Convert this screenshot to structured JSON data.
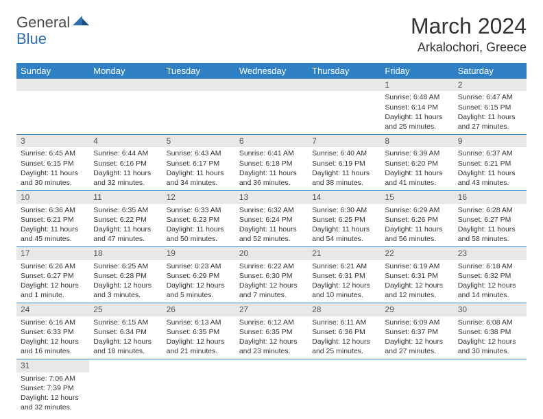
{
  "logo": {
    "general": "General",
    "blue": "Blue"
  },
  "title": "March 2024",
  "location": "Arkalochori, Greece",
  "dayHeaders": [
    "Sunday",
    "Monday",
    "Tuesday",
    "Wednesday",
    "Thursday",
    "Friday",
    "Saturday"
  ],
  "colors": {
    "header_bg": "#3080c5",
    "header_text": "#ffffff",
    "border": "#3080c5",
    "daynum_bg": "#e8e8e8",
    "logo_blue": "#2f6faf",
    "text": "#333333"
  },
  "weeks": [
    [
      null,
      null,
      null,
      null,
      null,
      {
        "n": "1",
        "sr": "Sunrise: 6:48 AM",
        "ss": "Sunset: 6:14 PM",
        "d1": "Daylight: 11 hours",
        "d2": "and 25 minutes."
      },
      {
        "n": "2",
        "sr": "Sunrise: 6:47 AM",
        "ss": "Sunset: 6:15 PM",
        "d1": "Daylight: 11 hours",
        "d2": "and 27 minutes."
      }
    ],
    [
      {
        "n": "3",
        "sr": "Sunrise: 6:45 AM",
        "ss": "Sunset: 6:15 PM",
        "d1": "Daylight: 11 hours",
        "d2": "and 30 minutes."
      },
      {
        "n": "4",
        "sr": "Sunrise: 6:44 AM",
        "ss": "Sunset: 6:16 PM",
        "d1": "Daylight: 11 hours",
        "d2": "and 32 minutes."
      },
      {
        "n": "5",
        "sr": "Sunrise: 6:43 AM",
        "ss": "Sunset: 6:17 PM",
        "d1": "Daylight: 11 hours",
        "d2": "and 34 minutes."
      },
      {
        "n": "6",
        "sr": "Sunrise: 6:41 AM",
        "ss": "Sunset: 6:18 PM",
        "d1": "Daylight: 11 hours",
        "d2": "and 36 minutes."
      },
      {
        "n": "7",
        "sr": "Sunrise: 6:40 AM",
        "ss": "Sunset: 6:19 PM",
        "d1": "Daylight: 11 hours",
        "d2": "and 38 minutes."
      },
      {
        "n": "8",
        "sr": "Sunrise: 6:39 AM",
        "ss": "Sunset: 6:20 PM",
        "d1": "Daylight: 11 hours",
        "d2": "and 41 minutes."
      },
      {
        "n": "9",
        "sr": "Sunrise: 6:37 AM",
        "ss": "Sunset: 6:21 PM",
        "d1": "Daylight: 11 hours",
        "d2": "and 43 minutes."
      }
    ],
    [
      {
        "n": "10",
        "sr": "Sunrise: 6:36 AM",
        "ss": "Sunset: 6:21 PM",
        "d1": "Daylight: 11 hours",
        "d2": "and 45 minutes."
      },
      {
        "n": "11",
        "sr": "Sunrise: 6:35 AM",
        "ss": "Sunset: 6:22 PM",
        "d1": "Daylight: 11 hours",
        "d2": "and 47 minutes."
      },
      {
        "n": "12",
        "sr": "Sunrise: 6:33 AM",
        "ss": "Sunset: 6:23 PM",
        "d1": "Daylight: 11 hours",
        "d2": "and 50 minutes."
      },
      {
        "n": "13",
        "sr": "Sunrise: 6:32 AM",
        "ss": "Sunset: 6:24 PM",
        "d1": "Daylight: 11 hours",
        "d2": "and 52 minutes."
      },
      {
        "n": "14",
        "sr": "Sunrise: 6:30 AM",
        "ss": "Sunset: 6:25 PM",
        "d1": "Daylight: 11 hours",
        "d2": "and 54 minutes."
      },
      {
        "n": "15",
        "sr": "Sunrise: 6:29 AM",
        "ss": "Sunset: 6:26 PM",
        "d1": "Daylight: 11 hours",
        "d2": "and 56 minutes."
      },
      {
        "n": "16",
        "sr": "Sunrise: 6:28 AM",
        "ss": "Sunset: 6:27 PM",
        "d1": "Daylight: 11 hours",
        "d2": "and 58 minutes."
      }
    ],
    [
      {
        "n": "17",
        "sr": "Sunrise: 6:26 AM",
        "ss": "Sunset: 6:27 PM",
        "d1": "Daylight: 12 hours",
        "d2": "and 1 minute."
      },
      {
        "n": "18",
        "sr": "Sunrise: 6:25 AM",
        "ss": "Sunset: 6:28 PM",
        "d1": "Daylight: 12 hours",
        "d2": "and 3 minutes."
      },
      {
        "n": "19",
        "sr": "Sunrise: 6:23 AM",
        "ss": "Sunset: 6:29 PM",
        "d1": "Daylight: 12 hours",
        "d2": "and 5 minutes."
      },
      {
        "n": "20",
        "sr": "Sunrise: 6:22 AM",
        "ss": "Sunset: 6:30 PM",
        "d1": "Daylight: 12 hours",
        "d2": "and 7 minutes."
      },
      {
        "n": "21",
        "sr": "Sunrise: 6:21 AM",
        "ss": "Sunset: 6:31 PM",
        "d1": "Daylight: 12 hours",
        "d2": "and 10 minutes."
      },
      {
        "n": "22",
        "sr": "Sunrise: 6:19 AM",
        "ss": "Sunset: 6:31 PM",
        "d1": "Daylight: 12 hours",
        "d2": "and 12 minutes."
      },
      {
        "n": "23",
        "sr": "Sunrise: 6:18 AM",
        "ss": "Sunset: 6:32 PM",
        "d1": "Daylight: 12 hours",
        "d2": "and 14 minutes."
      }
    ],
    [
      {
        "n": "24",
        "sr": "Sunrise: 6:16 AM",
        "ss": "Sunset: 6:33 PM",
        "d1": "Daylight: 12 hours",
        "d2": "and 16 minutes."
      },
      {
        "n": "25",
        "sr": "Sunrise: 6:15 AM",
        "ss": "Sunset: 6:34 PM",
        "d1": "Daylight: 12 hours",
        "d2": "and 18 minutes."
      },
      {
        "n": "26",
        "sr": "Sunrise: 6:13 AM",
        "ss": "Sunset: 6:35 PM",
        "d1": "Daylight: 12 hours",
        "d2": "and 21 minutes."
      },
      {
        "n": "27",
        "sr": "Sunrise: 6:12 AM",
        "ss": "Sunset: 6:35 PM",
        "d1": "Daylight: 12 hours",
        "d2": "and 23 minutes."
      },
      {
        "n": "28",
        "sr": "Sunrise: 6:11 AM",
        "ss": "Sunset: 6:36 PM",
        "d1": "Daylight: 12 hours",
        "d2": "and 25 minutes."
      },
      {
        "n": "29",
        "sr": "Sunrise: 6:09 AM",
        "ss": "Sunset: 6:37 PM",
        "d1": "Daylight: 12 hours",
        "d2": "and 27 minutes."
      },
      {
        "n": "30",
        "sr": "Sunrise: 6:08 AM",
        "ss": "Sunset: 6:38 PM",
        "d1": "Daylight: 12 hours",
        "d2": "and 30 minutes."
      }
    ],
    [
      {
        "n": "31",
        "sr": "Sunrise: 7:06 AM",
        "ss": "Sunset: 7:39 PM",
        "d1": "Daylight: 12 hours",
        "d2": "and 32 minutes."
      },
      null,
      null,
      null,
      null,
      null,
      null
    ]
  ]
}
